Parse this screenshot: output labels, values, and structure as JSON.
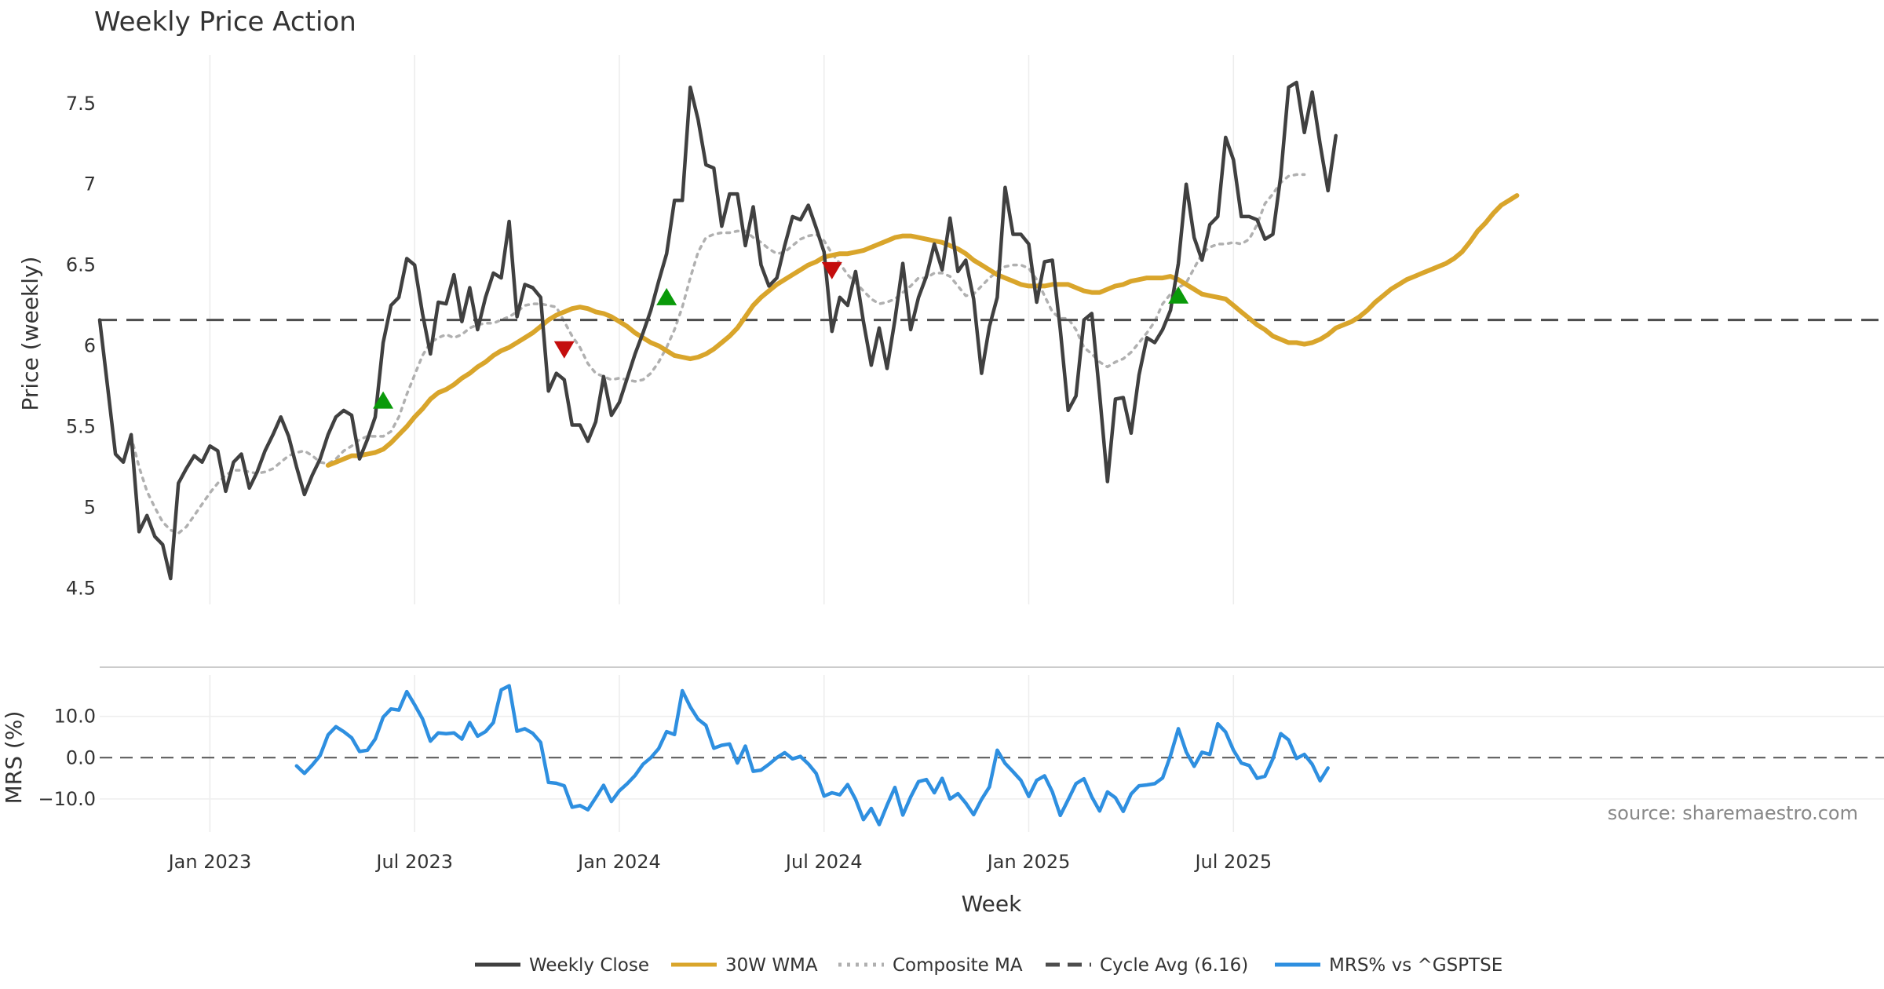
{
  "chart_data": {
    "type": "line",
    "title": "Weekly Price Action",
    "xlabel": "Week",
    "x_ticks": [
      "Jan 2023",
      "Jul 2023",
      "Jan 2024",
      "Jul 2024",
      "Jan 2025",
      "Jul 2025"
    ],
    "x_tick_index": [
      14,
      40,
      66,
      92,
      118,
      144
    ],
    "price_panel": {
      "ylabel": "Price (weekly)",
      "ylim": [
        4.4,
        7.8
      ],
      "y_ticks": [
        4.5,
        5,
        5.5,
        6,
        6.5,
        7,
        7.5
      ],
      "y_tick_labels": [
        "4.5",
        "5",
        "5.5",
        "6",
        "6.5",
        "7",
        "7.5"
      ],
      "series": [
        {
          "name": "Weekly Close",
          "color": "#404040",
          "style": "solid",
          "start_index": 0,
          "values": [
            6.16,
            5.75,
            5.33,
            5.28,
            5.45,
            4.85,
            4.95,
            4.82,
            4.77,
            4.56,
            5.15,
            5.24,
            5.32,
            5.28,
            5.38,
            5.35,
            5.1,
            5.28,
            5.33,
            5.12,
            5.22,
            5.35,
            5.45,
            5.56,
            5.44,
            5.25,
            5.08,
            5.2,
            5.3,
            5.45,
            5.56,
            5.6,
            5.57,
            5.3,
            5.42,
            5.56,
            6.02,
            6.25,
            6.3,
            6.54,
            6.5,
            6.2,
            5.95,
            6.27,
            6.26,
            6.44,
            6.15,
            6.36,
            6.1,
            6.3,
            6.45,
            6.42,
            6.77,
            6.18,
            6.38,
            6.36,
            6.3,
            5.72,
            5.83,
            5.79,
            5.51,
            5.51,
            5.41,
            5.53,
            5.81,
            5.57,
            5.65,
            5.8,
            5.95,
            6.08,
            6.22,
            6.4,
            6.57,
            6.9,
            6.9,
            7.6,
            7.4,
            7.12,
            7.1,
            6.74,
            6.94,
            6.94,
            6.62,
            6.86,
            6.5,
            6.37,
            6.42,
            6.62,
            6.8,
            6.78,
            6.87,
            6.73,
            6.58,
            6.09,
            6.3,
            6.25,
            6.46,
            6.15,
            5.88,
            6.11,
            5.86,
            6.16,
            6.51,
            6.1,
            6.3,
            6.43,
            6.63,
            6.47,
            6.79,
            6.46,
            6.53,
            6.29,
            5.83,
            6.12,
            6.3,
            6.98,
            6.69,
            6.69,
            6.63,
            6.27,
            6.52,
            6.53,
            6.1,
            5.6,
            5.69,
            6.16,
            6.2,
            5.7,
            5.16,
            5.67,
            5.68,
            5.46,
            5.82,
            6.05,
            6.02,
            6.1,
            6.22,
            6.51,
            7.0,
            6.67,
            6.53,
            6.75,
            6.8,
            7.29,
            7.15,
            6.8,
            6.8,
            6.78,
            6.66,
            6.69,
            7.05,
            7.6,
            7.63,
            7.32,
            7.57,
            7.25,
            6.96,
            7.3
          ]
        },
        {
          "name": "30W WMA",
          "color": "#d9a52b",
          "style": "solid",
          "start_index": 29,
          "values": [
            5.26,
            5.28,
            5.3,
            5.32,
            5.32,
            5.33,
            5.34,
            5.36,
            5.4,
            5.45,
            5.5,
            5.56,
            5.61,
            5.67,
            5.71,
            5.73,
            5.76,
            5.8,
            5.83,
            5.87,
            5.9,
            5.94,
            5.97,
            5.99,
            6.02,
            6.05,
            6.08,
            6.12,
            6.16,
            6.19,
            6.21,
            6.23,
            6.24,
            6.23,
            6.21,
            6.2,
            6.18,
            6.15,
            6.12,
            6.08,
            6.05,
            6.02,
            6.0,
            5.97,
            5.94,
            5.93,
            5.92,
            5.93,
            5.95,
            5.98,
            6.02,
            6.06,
            6.11,
            6.18,
            6.25,
            6.3,
            6.34,
            6.38,
            6.41,
            6.44,
            6.47,
            6.5,
            6.52,
            6.55,
            6.56,
            6.57,
            6.57,
            6.58,
            6.59,
            6.61,
            6.63,
            6.65,
            6.67,
            6.68,
            6.68,
            6.67,
            6.66,
            6.65,
            6.64,
            6.62,
            6.6,
            6.57,
            6.53,
            6.5,
            6.47,
            6.44,
            6.42,
            6.4,
            6.38,
            6.37,
            6.37,
            6.37,
            6.38,
            6.38,
            6.38,
            6.36,
            6.34,
            6.33,
            6.33,
            6.35,
            6.37,
            6.38,
            6.4,
            6.41,
            6.42,
            6.42,
            6.42,
            6.43,
            6.41,
            6.38,
            6.35,
            6.32,
            6.31,
            6.3,
            6.29,
            6.25,
            6.21,
            6.17,
            6.13,
            6.1,
            6.06,
            6.04,
            6.02,
            6.02,
            6.01,
            6.02,
            6.04,
            6.07,
            6.11,
            6.13,
            6.15,
            6.18,
            6.22,
            6.27,
            6.31,
            6.35,
            6.38,
            6.41,
            6.43,
            6.45,
            6.47,
            6.49,
            6.51,
            6.54,
            6.58,
            6.64,
            6.71,
            6.76,
            6.82,
            6.87,
            6.9,
            6.93
          ]
        },
        {
          "name": "Composite MA",
          "color": "#b0b0b0",
          "style": "dotted",
          "start_index": 4,
          "values": [
            5.44,
            5.25,
            5.1,
            5.0,
            4.91,
            4.86,
            4.84,
            4.88,
            4.95,
            5.02,
            5.09,
            5.15,
            5.2,
            5.23,
            5.23,
            5.22,
            5.21,
            5.22,
            5.24,
            5.28,
            5.32,
            5.34,
            5.35,
            5.32,
            5.28,
            5.27,
            5.3,
            5.35,
            5.38,
            5.42,
            5.44,
            5.44,
            5.44,
            5.47,
            5.56,
            5.7,
            5.82,
            5.94,
            6.02,
            6.05,
            6.07,
            6.05,
            6.07,
            6.11,
            6.13,
            6.14,
            6.14,
            6.16,
            6.18,
            6.21,
            6.25,
            6.26,
            6.26,
            6.25,
            6.24,
            6.15,
            6.06,
            5.99,
            5.89,
            5.83,
            5.81,
            5.79,
            5.8,
            5.79,
            5.78,
            5.79,
            5.83,
            5.9,
            5.99,
            6.1,
            6.24,
            6.42,
            6.58,
            6.67,
            6.69,
            6.7,
            6.7,
            6.71,
            6.71,
            6.67,
            6.64,
            6.6,
            6.57,
            6.58,
            6.62,
            6.66,
            6.68,
            6.69,
            6.65,
            6.57,
            6.51,
            6.44,
            6.39,
            6.34,
            6.29,
            6.26,
            6.27,
            6.29,
            6.33,
            6.37,
            6.42,
            6.42,
            6.45,
            6.45,
            6.43,
            6.37,
            6.31,
            6.32,
            6.37,
            6.42,
            6.46,
            6.49,
            6.5,
            6.5,
            6.48,
            6.41,
            6.31,
            6.21,
            6.17,
            6.17,
            6.1,
            5.99,
            5.95,
            5.9,
            5.87,
            5.9,
            5.92,
            5.96,
            6.02,
            6.08,
            6.15,
            6.26,
            6.32,
            6.36,
            6.39,
            6.48,
            6.57,
            6.61,
            6.63,
            6.63,
            6.64,
            6.63,
            6.66,
            6.75,
            6.88,
            6.94,
            7.01,
            7.05,
            7.06,
            7.06
          ]
        },
        {
          "name": "Cycle Avg (6.16)",
          "color": "#4d4d4d",
          "style": "dashed",
          "constant": 6.16
        }
      ],
      "buy_signals": [
        {
          "index": 36,
          "value": 5.66
        },
        {
          "index": 72,
          "value": 6.3
        },
        {
          "index": 137,
          "value": 6.31
        }
      ],
      "sell_signals": [
        {
          "index": 59,
          "value": 5.98
        },
        {
          "index": 93,
          "value": 6.47
        }
      ]
    },
    "mrs_panel": {
      "ylabel": "MRS (%)",
      "ylim": [
        -18,
        20
      ],
      "y_ticks": [
        -10,
        0,
        10
      ],
      "y_tick_labels": [
        "−10.0",
        "0.0",
        "10.0"
      ],
      "zero_line": 0,
      "series": [
        {
          "name": "MRS% vs ^GSPTSE",
          "color": "#2e8fe0",
          "style": "solid",
          "start_index": 25,
          "values": [
            -2,
            -3.8,
            -1.8,
            0.5,
            5.5,
            7.5,
            6.3,
            4.8,
            1.5,
            1.8,
            4.5,
            9.8,
            11.8,
            11.5,
            16,
            12.8,
            9.4,
            4,
            6,
            5.8,
            6,
            4.5,
            8.5,
            5.2,
            6.3,
            8.5,
            16.4,
            17.4,
            6.4,
            7,
            5.9,
            3.7,
            -6,
            -6.2,
            -6.8,
            -12,
            -11.6,
            -12.6,
            -9.7,
            -6.7,
            -10.6,
            -8,
            -6.3,
            -4.3,
            -1.6,
            0,
            2.2,
            6.3,
            5.6,
            16.2,
            12.3,
            9.3,
            7.8,
            2.3,
            3,
            3.3,
            -1.3,
            2.8,
            -3.3,
            -3,
            -1.6,
            0,
            1.2,
            -0.3,
            0.3,
            -1.5,
            -3.8,
            -9.3,
            -8.5,
            -9,
            -6.5,
            -10.1,
            -15,
            -12.3,
            -16.2,
            -11.5,
            -7.2,
            -13.9,
            -9.5,
            -5.8,
            -5.3,
            -8.5,
            -5,
            -10,
            -8.7,
            -11,
            -13.8,
            -10.1,
            -7.1,
            1.8,
            -1.4,
            -3.4,
            -5.5,
            -9.4,
            -5.5,
            -4.4,
            -8.3,
            -14,
            -10.2,
            -6.3,
            -5.1,
            -9.5,
            -12.9,
            -8.3,
            -9.7,
            -13,
            -8.8,
            -6.8,
            -6.6,
            -6.3,
            -4.9,
            0.5,
            7,
            1.4,
            -2.1,
            1.3,
            0.8,
            8.2,
            6.2,
            1.8,
            -1.3,
            -1.9,
            -5,
            -4.5,
            -0.3,
            5.8,
            4.3,
            -0.2,
            0.8,
            -1.6,
            -5.6,
            -2.5
          ]
        }
      ]
    },
    "legend": [
      {
        "label": "Weekly Close",
        "color": "#404040",
        "style": "solid"
      },
      {
        "label": "30W WMA",
        "color": "#d9a52b",
        "style": "solid"
      },
      {
        "label": "Composite MA",
        "color": "#b0b0b0",
        "style": "dotted"
      },
      {
        "label": "Cycle Avg (6.16)",
        "color": "#4d4d4d",
        "style": "dashed"
      },
      {
        "label": "MRS% vs ^GSPTSE",
        "color": "#2e8fe0",
        "style": "solid"
      }
    ],
    "legend_position": "bottom-center",
    "source_note": "source: sharemaestro.com",
    "grid": true
  }
}
